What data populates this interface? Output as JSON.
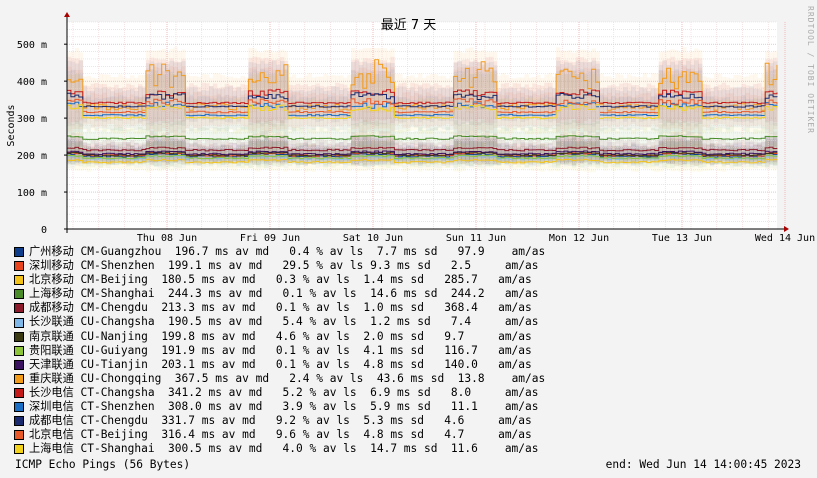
{
  "title": "最近 7 天",
  "side_label": "RRDTOOL / TOBI OETIKER",
  "chart_data": {
    "type": "line",
    "title": "最近 7 天",
    "ylabel": "Seconds",
    "ylim": [
      0,
      560
    ],
    "yticks": [
      0,
      100,
      200,
      300,
      400,
      500
    ],
    "ytick_labels": [
      "0",
      "100 m",
      "200 m",
      "300 m",
      "400 m",
      "500 m"
    ],
    "xticks": [
      "Thu 08 Jun",
      "Fri 09 Jun",
      "Sat 10 Jun",
      "Sun 11 Jun",
      "Mon 12 Jun",
      "Tue 13 Jun",
      "Wed 14 Jun"
    ],
    "grid": true,
    "series": [
      {
        "name": "广州移动 CM-Guangzhou",
        "color": "#0e3d8c",
        "median": 196.7,
        "avg": "196.7 ms av md",
        "loss": "0.4 % av ls",
        "sd": "7.7 ms sd",
        "am": "97.9"
      },
      {
        "name": "深圳移动 CM-Shenzhen",
        "color": "#e8451f",
        "median": 199.1,
        "avg": "199.1 ms av md",
        "loss": "29.5 % av ls",
        "sd": "9.3 ms sd",
        "am": "2.5"
      },
      {
        "name": "北京移动 CM-Beijing",
        "color": "#f2c21a",
        "median": 180.5,
        "avg": "180.5 ms av md",
        "loss": "0.3 % av ls",
        "sd": "1.4 ms sd",
        "am": "285.7"
      },
      {
        "name": "上海移动 CM-Shanghai",
        "color": "#4a8c2a",
        "median": 244.3,
        "avg": "244.3 ms av md",
        "loss": "0.1 % av ls",
        "sd": "14.6 ms sd",
        "am": "244.2"
      },
      {
        "name": "成都移动 CM-Chengdu",
        "color": "#8c1a2a",
        "median": 213.3,
        "avg": "213.3 ms av md",
        "loss": "0.1 % av ls",
        "sd": "1.0 ms sd",
        "am": "368.4"
      },
      {
        "name": "长沙联通 CU-Changsha",
        "color": "#7fb8e8",
        "median": 190.5,
        "avg": "190.5 ms av md",
        "loss": "5.4 % av ls",
        "sd": "1.2 ms sd",
        "am": "7.4"
      },
      {
        "name": "南京联通 CU-Nanjing",
        "color": "#3a3a12",
        "median": 199.8,
        "avg": "199.8 ms av md",
        "loss": "4.6 % av ls",
        "sd": "2.0 ms sd",
        "am": "9.7"
      },
      {
        "name": "贵阳联通 CU-Guiyang",
        "color": "#8cc43a",
        "median": 191.9,
        "avg": "191.9 ms av md",
        "loss": "0.1 % av ls",
        "sd": "4.1 ms sd",
        "am": "116.7"
      },
      {
        "name": "天津联通 CU-Tianjin",
        "color": "#3a1260",
        "median": 203.1,
        "avg": "203.1 ms av md",
        "loss": "0.1 % av ls",
        "sd": "4.8 ms sd",
        "am": "140.0"
      },
      {
        "name": "重庆联通 CU-Chongqing",
        "color": "#f29a1a",
        "median": 367.5,
        "avg": "367.5 ms av md",
        "loss": "2.4 % av ls",
        "sd": "43.6 ms sd",
        "am": "13.8"
      },
      {
        "name": "长沙电信 CT-Changsha",
        "color": "#c41a1a",
        "median": 341.2,
        "avg": "341.2 ms av md",
        "loss": "5.2 % av ls",
        "sd": "6.9 ms sd",
        "am": "8.0"
      },
      {
        "name": "深圳电信 CT-Shenzhen",
        "color": "#1a6ec4",
        "median": 308.0,
        "avg": "308.0 ms av md",
        "loss": "3.9 % av ls",
        "sd": "5.9 ms sd",
        "am": "11.1"
      },
      {
        "name": "成都电信 CT-Chengdu",
        "color": "#1a2a6e",
        "median": 331.7,
        "avg": "331.7 ms av md",
        "loss": "9.2 % av ls",
        "sd": "5.3 ms sd",
        "am": "4.6"
      },
      {
        "name": "北京电信 CT-Beijing",
        "color": "#e85a2a",
        "median": 316.4,
        "avg": "316.4 ms av md",
        "loss": "9.6 % av ls",
        "sd": "4.8 ms sd",
        "am": "4.7"
      },
      {
        "name": "上海电信 CT-Shanghai",
        "color": "#f2d21a",
        "median": 300.5,
        "avg": "300.5 ms av md",
        "loss": "4.0 % av ls",
        "sd": "14.7 ms sd",
        "am": "11.6"
      }
    ]
  },
  "footer": {
    "left": "ICMP Echo Pings (56 Bytes)",
    "right": "end: Wed Jun 14 14:00:45 2023"
  },
  "am_suffix": "am/as"
}
